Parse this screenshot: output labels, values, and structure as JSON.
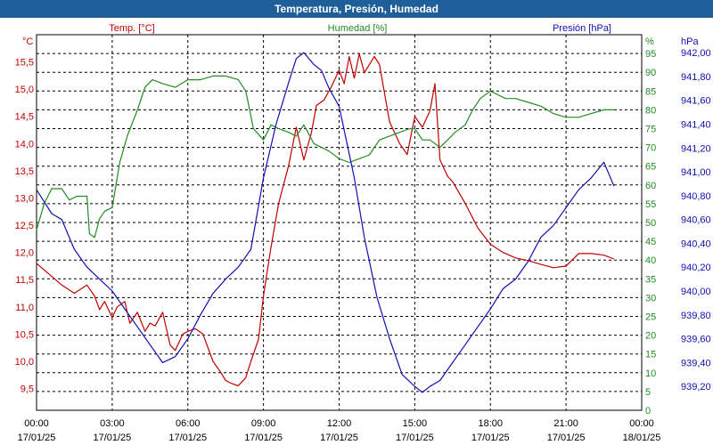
{
  "window": {
    "title": "Temperatura, Presión, Humedad"
  },
  "chart_data": {
    "type": "line",
    "title": "Temperatura, Presión, Humedad",
    "colors": {
      "temp": "#c00000",
      "hum": "#228b22",
      "pres": "#1010b0",
      "titlebar": "#1f5f99",
      "grid": "#000000"
    },
    "axes": {
      "temp": {
        "label": "Temp. [°C]",
        "unit": "°C",
        "ylim": [
          9.1,
          16.0
        ],
        "ticks": [
          "9,5",
          "10,0",
          "10,5",
          "11,0",
          "11,5",
          "12,0",
          "12,5",
          "13,0",
          "13,5",
          "14,0",
          "14,5",
          "15,0",
          "15,5"
        ]
      },
      "hum": {
        "label": "Humedad [%]",
        "unit": "%",
        "ylim": [
          0,
          100
        ],
        "ticks": [
          "0",
          "5",
          "10",
          "15",
          "20",
          "25",
          "30",
          "35",
          "40",
          "45",
          "50",
          "55",
          "60",
          "65",
          "70",
          "75",
          "80",
          "85",
          "90",
          "95"
        ]
      },
      "pres": {
        "label": "Presión [hPa]",
        "unit": "hPa",
        "ylim": [
          939.0,
          942.15
        ],
        "ticks": [
          "939,20",
          "939,40",
          "939,60",
          "939,80",
          "940,00",
          "940,20",
          "940,40",
          "940,60",
          "940,80",
          "941,00",
          "941,20",
          "941,40",
          "941,60",
          "941,80",
          "942,00"
        ]
      },
      "x": {
        "ticks": [
          {
            "time": "00:00",
            "date": "17/01/25"
          },
          {
            "time": "03:00",
            "date": "17/01/25"
          },
          {
            "time": "06:00",
            "date": "17/01/25"
          },
          {
            "time": "09:00",
            "date": "17/01/25"
          },
          {
            "time": "12:00",
            "date": "17/01/25"
          },
          {
            "time": "15:00",
            "date": "17/01/25"
          },
          {
            "time": "18:00",
            "date": "17/01/25"
          },
          {
            "time": "21:00",
            "date": "17/01/25"
          },
          {
            "time": "00:00",
            "date": "18/01/25"
          }
        ]
      }
    },
    "grid": true,
    "series": [
      {
        "name": "Temp. [°C]",
        "key": "temp",
        "x_hours": [
          0,
          0.5,
          1,
          1.5,
          2,
          2.3,
          2.5,
          2.7,
          3,
          3.2,
          3.5,
          3.7,
          4,
          4.3,
          4.5,
          4.7,
          5,
          5.3,
          5.5,
          5.8,
          6,
          6.3,
          6.6,
          7,
          7.3,
          7.5,
          7.7,
          8,
          8.3,
          8.5,
          8.8,
          9,
          9.3,
          9.6,
          10,
          10.3,
          10.6,
          10.9,
          11.1,
          11.4,
          11.7,
          12,
          12.2,
          12.4,
          12.6,
          12.8,
          13,
          13.2,
          13.4,
          13.6,
          14,
          14.4,
          14.7,
          15,
          15.3,
          15.6,
          15.8,
          16,
          16.3,
          16.5,
          17,
          17.5,
          18,
          18.5,
          19,
          19.5,
          20,
          20.5,
          21,
          21.5,
          22,
          22.5,
          22.9
        ],
        "values": [
          11.8,
          11.6,
          11.4,
          11.25,
          11.4,
          11.2,
          10.95,
          11.1,
          10.8,
          11,
          11.1,
          10.7,
          10.9,
          10.55,
          10.7,
          10.65,
          10.9,
          10.3,
          10.2,
          10.5,
          10.55,
          10.6,
          10.5,
          10.0,
          9.8,
          9.65,
          9.6,
          9.55,
          9.7,
          10.0,
          10.4,
          11.2,
          12.1,
          12.9,
          13.6,
          14.3,
          13.7,
          14.2,
          14.7,
          14.8,
          15.05,
          15.35,
          15.1,
          15.6,
          15.2,
          15.65,
          15.3,
          15.45,
          15.6,
          15.45,
          14.4,
          14.0,
          13.8,
          14.5,
          14.3,
          14.6,
          15.1,
          13.7,
          13.4,
          13.3,
          12.9,
          12.45,
          12.15,
          12.0,
          11.9,
          11.85,
          11.78,
          11.72,
          11.75,
          11.98,
          11.98,
          11.95,
          11.88
        ]
      },
      {
        "name": "Humedad [%]",
        "key": "hum",
        "x_hours": [
          0,
          0.3,
          0.6,
          1,
          1.3,
          1.6,
          2,
          2.1,
          2.3,
          2.5,
          2.7,
          3,
          3.3,
          3.6,
          4,
          4.3,
          4.6,
          5,
          5.5,
          6,
          6.5,
          7,
          7.5,
          8,
          8.3,
          8.6,
          9,
          9.3,
          9.6,
          10,
          10.3,
          10.6,
          11,
          11.3,
          11.6,
          12,
          12.4,
          12.8,
          13.2,
          13.6,
          14,
          14.4,
          14.8,
          15,
          15.3,
          15.6,
          16,
          16.3,
          16.6,
          17,
          17.3,
          17.6,
          18,
          18.3,
          18.6,
          19,
          19.5,
          20,
          20.5,
          21,
          21.5,
          22,
          22.5,
          22.9
        ],
        "values": [
          48,
          55,
          59,
          59,
          56,
          57,
          57,
          47,
          46,
          51,
          53,
          54,
          66,
          73,
          80,
          86,
          88,
          87,
          86,
          88,
          88,
          89,
          89,
          88,
          85,
          75,
          72,
          76,
          75,
          74,
          73,
          76,
          71,
          70,
          69,
          67,
          66,
          67,
          68,
          72,
          73,
          74,
          75,
          75,
          72,
          72,
          70,
          72,
          74,
          76,
          80,
          83,
          85,
          84,
          83,
          83,
          82,
          81,
          79,
          78,
          78,
          79,
          80,
          80
        ]
      },
      {
        "name": "Presión [hPa]",
        "key": "pres",
        "x_hours": [
          0,
          0.3,
          0.6,
          1,
          1.5,
          2,
          2.5,
          3,
          3.5,
          4,
          4.5,
          5,
          5.5,
          6,
          6.5,
          7,
          7.5,
          8,
          8.5,
          9,
          9.5,
          10,
          10.3,
          10.6,
          11,
          11.3,
          11.6,
          12,
          12.3,
          12.6,
          13,
          13.5,
          14,
          14.5,
          15,
          15.3,
          15.6,
          16,
          16.5,
          17,
          17.5,
          18,
          18.5,
          19,
          19.5,
          20,
          20.5,
          21,
          21.5,
          22,
          22.5,
          22.9
        ],
        "values": [
          940.85,
          940.75,
          940.65,
          940.6,
          940.35,
          940.2,
          940.1,
          940.0,
          939.85,
          939.7,
          939.55,
          939.4,
          939.45,
          939.6,
          939.8,
          939.98,
          940.1,
          940.2,
          940.35,
          940.95,
          941.4,
          941.75,
          941.95,
          942.0,
          941.9,
          941.85,
          941.7,
          941.55,
          941.25,
          940.95,
          940.45,
          939.95,
          939.6,
          939.3,
          939.2,
          939.15,
          939.2,
          939.25,
          939.4,
          939.55,
          939.7,
          939.85,
          940.02,
          940.1,
          940.25,
          940.45,
          940.55,
          940.7,
          940.85,
          940.95,
          941.08,
          940.88
        ]
      }
    ]
  }
}
